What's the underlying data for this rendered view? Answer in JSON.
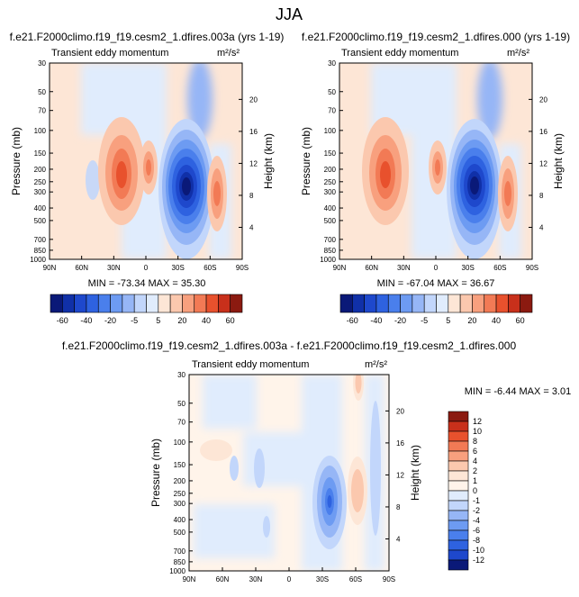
{
  "page": {
    "title": "JJA"
  },
  "panels": [
    {
      "title": "f.e21.F2000climo.f19_f19.cesm2_1.dfires.003a (yrs 1-19)",
      "variable": "Transient eddy momentum",
      "units": "m²/s²",
      "min_max": "MIN = -73.34   MAX = 35.30"
    },
    {
      "title": "f.e21.F2000climo.f19_f19.cesm2_1.dfires.000 (yrs 1-19)",
      "variable": "Transient eddy momentum",
      "units": "m²/s²",
      "min_max": "MIN = -67.04   MAX = 36.67"
    },
    {
      "title": "f.e21.F2000climo.f19_f19.cesm2_1.dfires.003a - f.e21.F2000climo.f19_f19.cesm2_1.dfires.000",
      "variable": "Transient eddy momentum",
      "units": "m²/s²",
      "min_max": "MIN =  -6.44   MAX =   3.01"
    }
  ],
  "chart_data": [
    {
      "type": "heatmap",
      "title": "f.e21.F2000climo.f19_f19.cesm2_1.dfires.003a (yrs 1-19)",
      "xlabel": "",
      "ylabel": "Pressure (mb)",
      "y2label": "Height (km)",
      "x_ticks": [
        "90N",
        "60N",
        "30N",
        "0",
        "30S",
        "60S",
        "90S"
      ],
      "y_ticks": [
        30,
        50,
        70,
        100,
        150,
        200,
        250,
        300,
        400,
        500,
        700,
        850,
        1000
      ],
      "y2_ticks": [
        4,
        8,
        12,
        16,
        20
      ],
      "colorbar_labels": [
        "-60",
        "-40",
        "-20",
        "-5",
        "5",
        "20",
        "40",
        "60"
      ],
      "colorbar_colors": [
        "#0a1978",
        "#1030a8",
        "#1e48cc",
        "#2e62e0",
        "#4a7fec",
        "#6d9bf2",
        "#96b6f6",
        "#c2d6fb",
        "#e0ecfd",
        "#fde6d6",
        "#fbc8ae",
        "#f8a07e",
        "#f27a55",
        "#e8512d",
        "#c8301b",
        "#8b1a10"
      ],
      "min": -73.34,
      "max": 35.3,
      "features": [
        {
          "lat": 40,
          "p": 230,
          "value": 28
        },
        {
          "lat": 9,
          "p": 200,
          "value": 20
        },
        {
          "lat": -20,
          "p": 290,
          "value": -73
        },
        {
          "lat": -46,
          "p": 300,
          "value": 25
        }
      ]
    },
    {
      "type": "heatmap",
      "title": "f.e21.F2000climo.f19_f19.cesm2_1.dfires.000 (yrs 1-19)",
      "xlabel": "",
      "ylabel": "Pressure (mb)",
      "y2label": "Height (km)",
      "x_ticks": [
        "90N",
        "60N",
        "30N",
        "0",
        "30S",
        "60S",
        "90S"
      ],
      "y_ticks": [
        30,
        50,
        70,
        100,
        150,
        200,
        250,
        300,
        400,
        500,
        700,
        850,
        1000
      ],
      "y2_ticks": [
        4,
        8,
        12,
        16,
        20
      ],
      "colorbar_labels": [
        "-60",
        "-40",
        "-20",
        "-5",
        "5",
        "20",
        "40",
        "60"
      ],
      "colorbar_colors": [
        "#0a1978",
        "#1030a8",
        "#1e48cc",
        "#2e62e0",
        "#4a7fec",
        "#6d9bf2",
        "#96b6f6",
        "#c2d6fb",
        "#e0ecfd",
        "#fde6d6",
        "#fbc8ae",
        "#f8a07e",
        "#f27a55",
        "#e8512d",
        "#c8301b",
        "#8b1a10"
      ],
      "min": -67.04,
      "max": 36.67,
      "features": [
        {
          "lat": 40,
          "p": 230,
          "value": 30
        },
        {
          "lat": 9,
          "p": 200,
          "value": 20
        },
        {
          "lat": -20,
          "p": 290,
          "value": -67
        },
        {
          "lat": -46,
          "p": 300,
          "value": 24
        }
      ]
    },
    {
      "type": "heatmap",
      "title": "f.e21.F2000climo.f19_f19.cesm2_1.dfires.003a - f.e21.F2000climo.f19_f19.cesm2_1.dfires.000",
      "xlabel": "",
      "ylabel": "Pressure (mb)",
      "y2label": "Height (km)",
      "x_ticks": [
        "90N",
        "60N",
        "30N",
        "0",
        "30S",
        "60S",
        "90S"
      ],
      "y_ticks": [
        30,
        50,
        70,
        100,
        150,
        200,
        250,
        300,
        400,
        500,
        700,
        850,
        1000
      ],
      "y2_ticks": [
        4,
        8,
        12,
        16,
        20
      ],
      "colorbar_labels": [
        "12",
        "10",
        "8",
        "6",
        "4",
        "2",
        "1",
        "0",
        "-1",
        "-2",
        "-4",
        "-6",
        "-8",
        "-10",
        "-12"
      ],
      "colorbar_colors": [
        "#8b1a10",
        "#c8301b",
        "#e8512d",
        "#f27a55",
        "#f8a07e",
        "#fbc8ae",
        "#fde6d6",
        "#fff4ea",
        "#e0ecfd",
        "#c2d6fb",
        "#96b6f6",
        "#6d9bf2",
        "#4a7fec",
        "#2e62e0",
        "#1e48cc",
        "#0a1978"
      ],
      "min": -6.44,
      "max": 3.01,
      "features": [
        {
          "lat": -33,
          "p": 290,
          "value": -6.4
        },
        {
          "lat": -60,
          "p": 300,
          "value": 1.5
        },
        {
          "lat": -70,
          "p": 40,
          "value": 3
        }
      ]
    }
  ]
}
